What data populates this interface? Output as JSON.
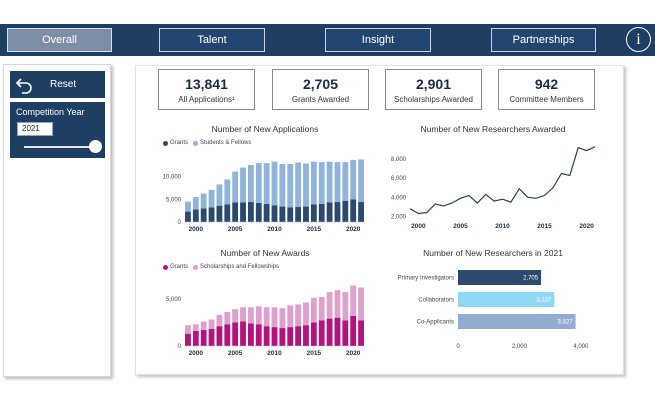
{
  "nav": {
    "tabs": [
      {
        "label": "Overall",
        "active": true
      },
      {
        "label": "Talent",
        "active": false
      },
      {
        "label": "Insight",
        "active": false
      },
      {
        "label": "Partnerships",
        "active": false
      }
    ],
    "info_icon": "i"
  },
  "filters": {
    "reset_label": "Reset",
    "reset_icon": "undo-arrow-icon",
    "competition_year_label": "Competition Year",
    "competition_year_value": "2021",
    "slider_position": 1.0
  },
  "kpis": [
    {
      "value": "13,841",
      "label": "All Applications¹"
    },
    {
      "value": "2,705",
      "label": "Grants Awarded"
    },
    {
      "value": "2,901",
      "label": "Scholarships Awarded"
    },
    {
      "value": "942",
      "label": "Committee Members"
    }
  ],
  "colors": {
    "navy": "#1f3e64",
    "grants_dark": "#2c4a6e",
    "students_light": "#8fb3d9",
    "awards_magenta": "#b3127f",
    "awards_pink": "#dda0cf",
    "line": "#2c3e55",
    "bar_collab": "#8fd7f2",
    "bar_coapp": "#91acd3"
  },
  "chart_data": [
    {
      "type": "bar",
      "title": "Number of New Applications",
      "stacked": true,
      "x": [
        1999,
        2000,
        2001,
        2002,
        2003,
        2004,
        2005,
        2006,
        2007,
        2008,
        2009,
        2010,
        2011,
        2012,
        2013,
        2014,
        2015,
        2016,
        2017,
        2018,
        2019,
        2020,
        2021
      ],
      "x_ticks": [
        "2000",
        "2005",
        "2010",
        "2015",
        "2020"
      ],
      "y_ticks": [
        "0",
        "5,000",
        "10,000"
      ],
      "ylim": [
        0,
        15000
      ],
      "grid": false,
      "legend_position": "top-left",
      "series": [
        {
          "name": "Grants",
          "values": [
            2300,
            2800,
            3000,
            3200,
            3600,
            3900,
            4300,
            4300,
            4400,
            4200,
            4000,
            3700,
            3400,
            3200,
            3300,
            3400,
            3900,
            4000,
            4300,
            4400,
            4700,
            5000,
            4400
          ]
        },
        {
          "name": "Students & Fellows",
          "values": [
            2200,
            2700,
            3300,
            3900,
            4700,
            5500,
            6800,
            7700,
            8200,
            8800,
            9000,
            9600,
            9400,
            9600,
            9800,
            9500,
            9400,
            9200,
            9000,
            8800,
            8500,
            8700,
            9400
          ]
        }
      ]
    },
    {
      "type": "line",
      "title": "Number of New Researchers Awarded",
      "x": [
        1999,
        2000,
        2001,
        2002,
        2003,
        2004,
        2005,
        2006,
        2007,
        2008,
        2009,
        2010,
        2011,
        2012,
        2013,
        2014,
        2015,
        2016,
        2017,
        2018,
        2019,
        2020,
        2021
      ],
      "x_ticks": [
        "2000",
        "2005",
        "2010",
        "2015",
        "2020"
      ],
      "y_ticks": [
        "2,000",
        "4,000",
        "6,000",
        "8,000"
      ],
      "ylim": [
        1200,
        9800
      ],
      "grid": false,
      "series": [
        {
          "name": "New Researchers Awarded",
          "values": [
            2800,
            2300,
            2400,
            3300,
            3100,
            3400,
            3900,
            4200,
            3400,
            4300,
            3600,
            3800,
            3500,
            4900,
            4000,
            3900,
            4200,
            5000,
            6500,
            6300,
            9200,
            8900,
            9300
          ]
        }
      ]
    },
    {
      "type": "bar",
      "title": "Number of New Awards",
      "stacked": true,
      "x": [
        1999,
        2000,
        2001,
        2002,
        2003,
        2004,
        2005,
        2006,
        2007,
        2008,
        2009,
        2010,
        2011,
        2012,
        2013,
        2014,
        2015,
        2016,
        2017,
        2018,
        2019,
        2020,
        2021
      ],
      "x_ticks": [
        "2000",
        "2005",
        "2010",
        "2015",
        "2020"
      ],
      "y_ticks": [
        "0",
        "5,000"
      ],
      "ylim": [
        0,
        7200
      ],
      "grid": false,
      "legend_position": "top-left",
      "series": [
        {
          "name": "Grants",
          "values": [
            1300,
            1600,
            1700,
            1800,
            2100,
            2300,
            2500,
            2600,
            2400,
            2300,
            2100,
            2000,
            1900,
            2000,
            2100,
            2200,
            2500,
            2700,
            2900,
            3000,
            2700,
            3200,
            2700
          ]
        },
        {
          "name": "Scholarships and Fellowships",
          "values": [
            900,
            700,
            900,
            1000,
            1200,
            1300,
            1400,
            1500,
            1700,
            1900,
            2000,
            2100,
            2100,
            2300,
            2300,
            2400,
            2600,
            2500,
            2800,
            2900,
            3000,
            3200,
            3500
          ]
        }
      ]
    },
    {
      "type": "bar",
      "orientation": "horizontal",
      "title": "Number of New Researchers in 2021",
      "categories": [
        "Primary Investigators",
        "Collaborators",
        "Co-Applicants"
      ],
      "values": [
        2705,
        3137,
        3827
      ],
      "value_labels": [
        "2,705",
        "3,137",
        "3,827"
      ],
      "x_ticks": [
        "0",
        "2,000",
        "4,000"
      ],
      "xlim": [
        0,
        4200
      ],
      "grid": false
    }
  ]
}
